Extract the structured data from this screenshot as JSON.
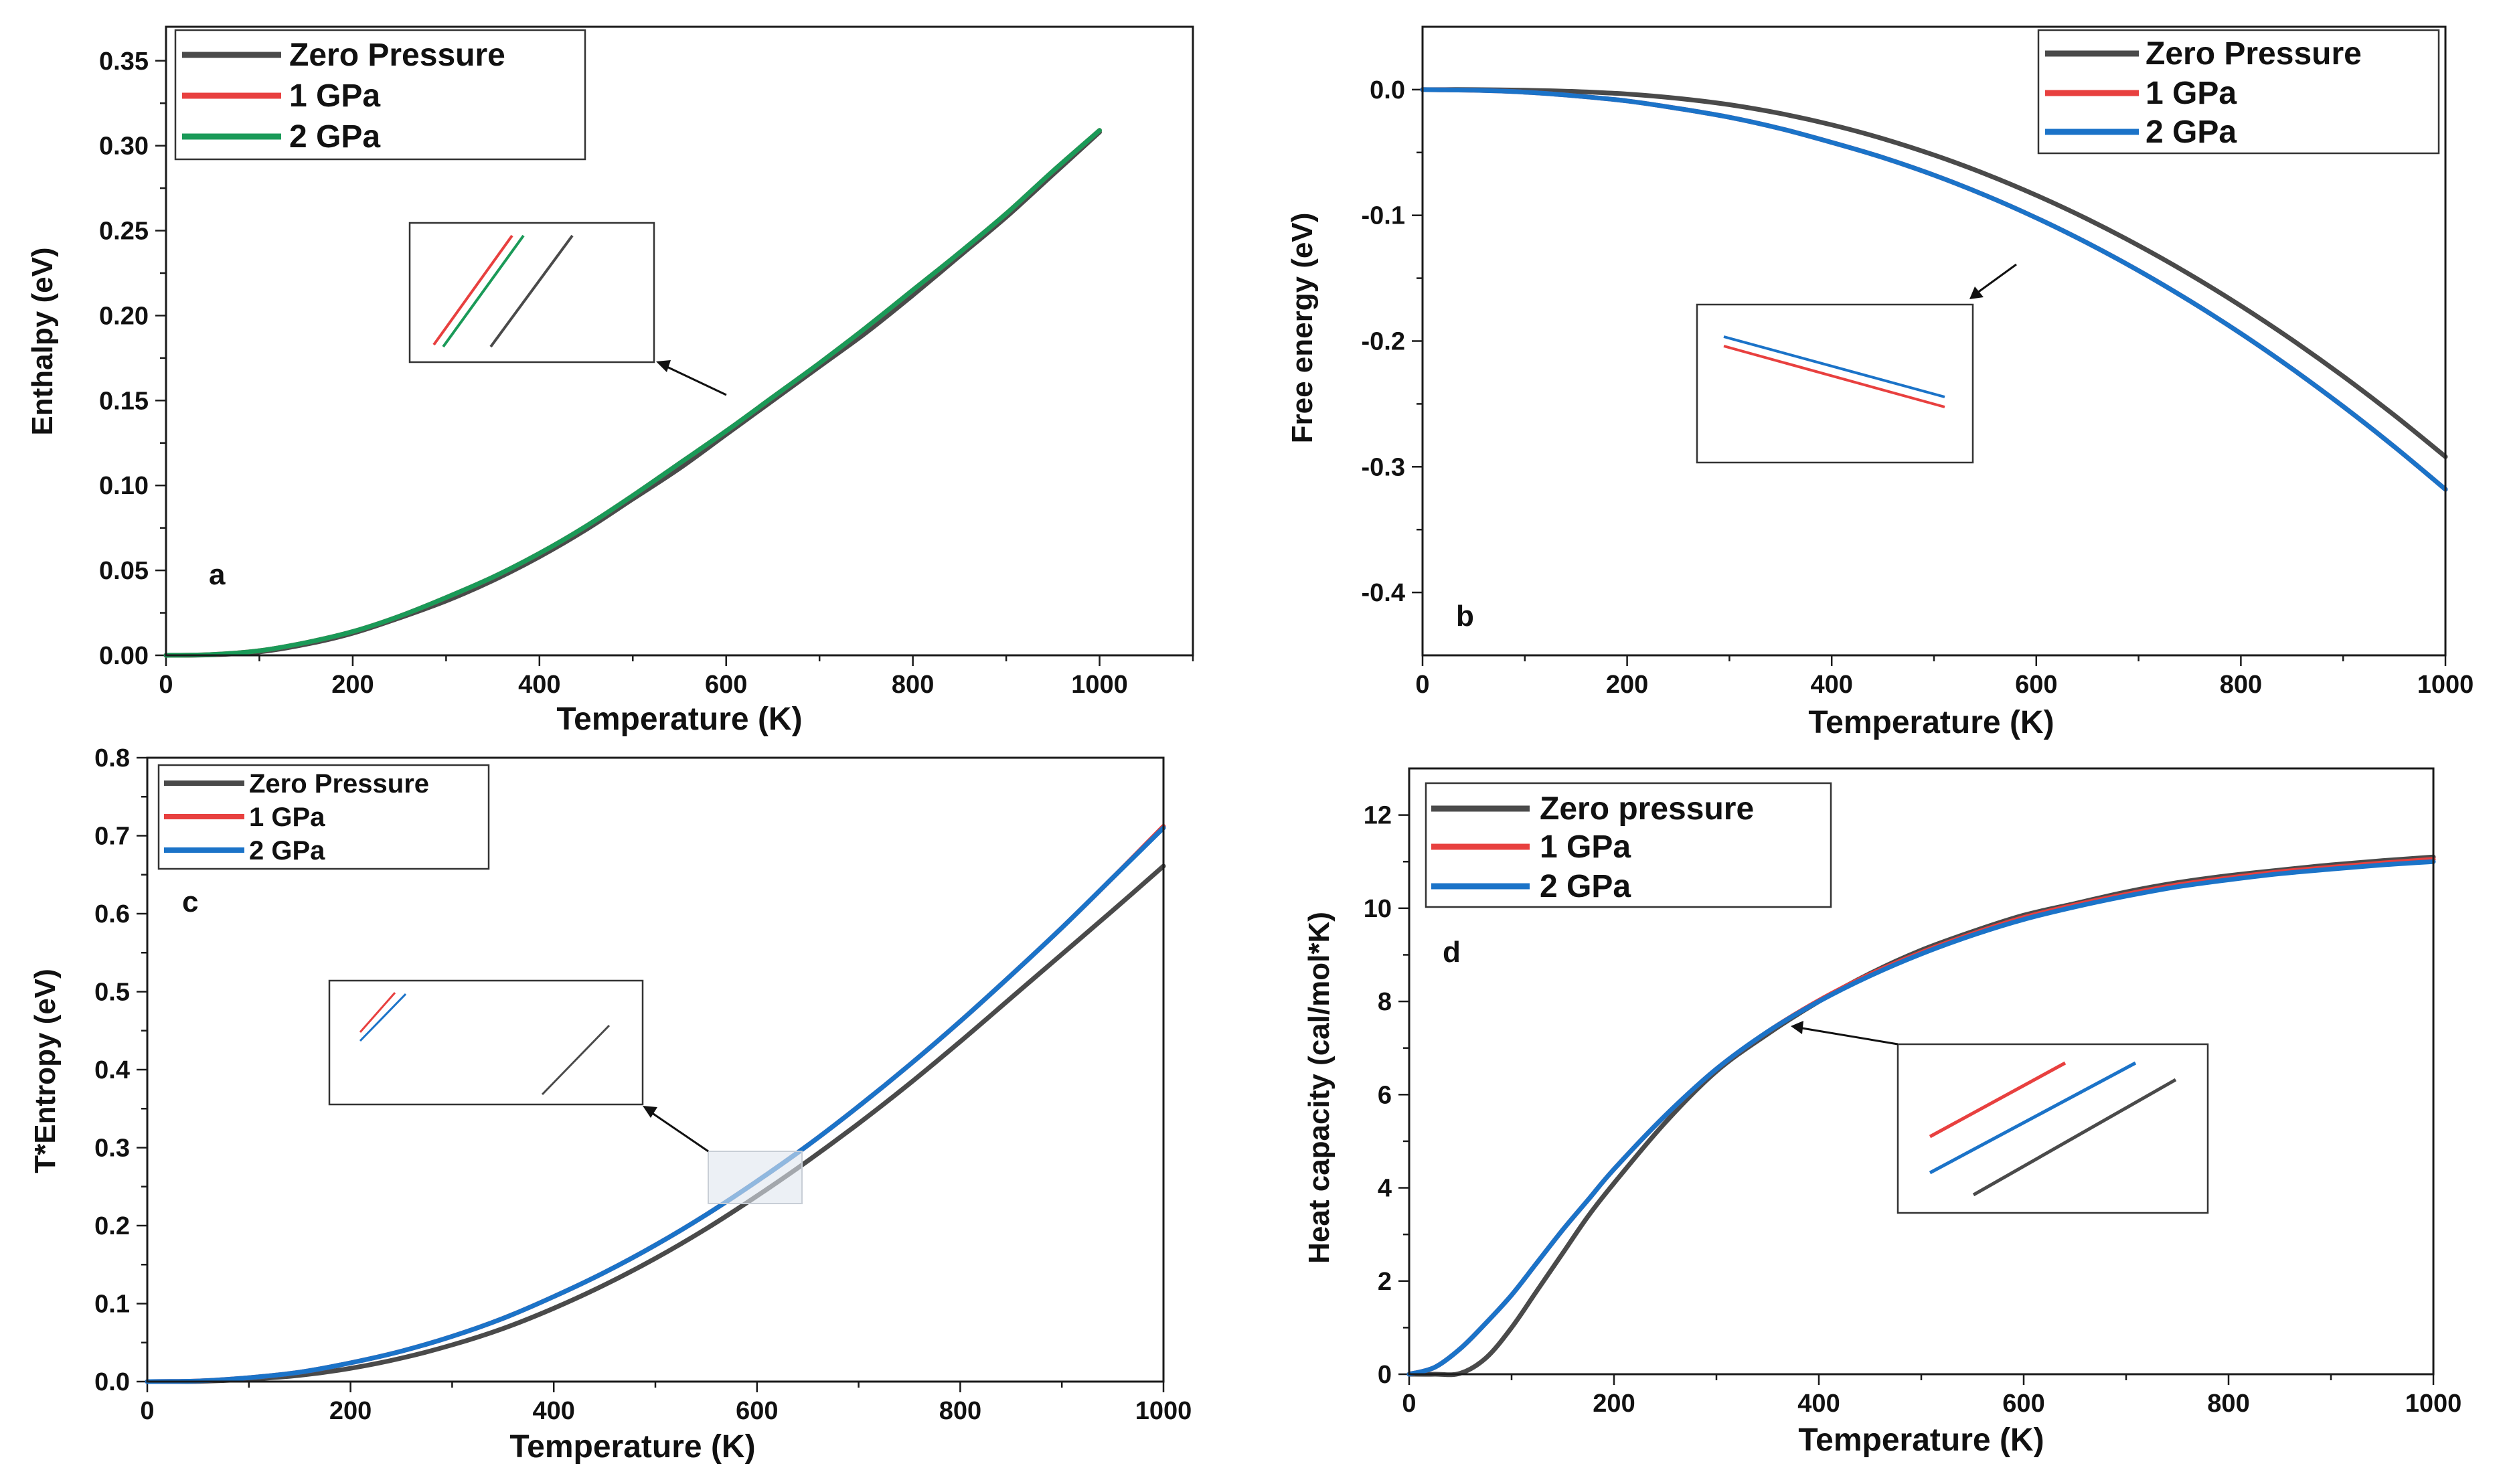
{
  "colors": {
    "zero": "#4a4a4a",
    "gpa1": "#e8403f",
    "gpa2_green": "#1a9a58",
    "gpa2_blue": "#1b73c8"
  },
  "chart_data": [
    {
      "id": "a",
      "type": "line",
      "panel_label": "a",
      "xlabel": "Temperature (K)",
      "ylabel": "Enthalpy (eV)",
      "xlim": [
        0,
        1100
      ],
      "ylim": [
        0,
        0.37
      ],
      "xticks": [
        0,
        200,
        400,
        600,
        800,
        1000
      ],
      "yticks": [
        0.0,
        0.05,
        0.1,
        0.15,
        0.2,
        0.25,
        0.3,
        0.35
      ],
      "ytick_labels": [
        "0.00",
        "0.05",
        "0.10",
        "0.15",
        "0.20",
        "0.25",
        "0.30",
        "0.35"
      ],
      "legend": [
        "Zero Pressure",
        "1 GPa",
        "2 GPa"
      ],
      "legend_position": "top-left",
      "x": [
        0,
        50,
        100,
        150,
        200,
        250,
        300,
        350,
        400,
        450,
        500,
        550,
        600,
        650,
        700,
        750,
        800,
        850,
        900,
        950,
        1000
      ],
      "series": [
        {
          "name": "Zero Pressure",
          "color_key": "zero",
          "values": [
            0,
            0.0003,
            0.002,
            0.0065,
            0.013,
            0.022,
            0.032,
            0.044,
            0.058,
            0.074,
            0.092,
            0.11,
            0.13,
            0.15,
            0.17,
            0.19,
            0.212,
            0.235,
            0.258,
            0.283,
            0.308
          ]
        },
        {
          "name": "1 GPa",
          "color_key": "gpa1",
          "values": [
            0,
            0.0005,
            0.0027,
            0.0075,
            0.014,
            0.023,
            0.034,
            0.046,
            0.06,
            0.076,
            0.094,
            0.113,
            0.132,
            0.152,
            0.172,
            0.193,
            0.215,
            0.237,
            0.26,
            0.285,
            0.309
          ]
        },
        {
          "name": "2 GPa",
          "color_key": "gpa2_green",
          "values": [
            0,
            0.0005,
            0.0027,
            0.0075,
            0.014,
            0.023,
            0.034,
            0.046,
            0.06,
            0.076,
            0.094,
            0.113,
            0.132,
            0.152,
            0.172,
            0.193,
            0.215,
            0.237,
            0.26,
            0.285,
            0.309
          ]
        }
      ]
    },
    {
      "id": "b",
      "type": "line",
      "panel_label": "b",
      "xlabel": "Temperature (K)",
      "ylabel": "Free energy (eV)",
      "xlim": [
        0,
        1000
      ],
      "ylim": [
        -0.45,
        0.05
      ],
      "xticks": [
        0,
        200,
        400,
        600,
        800,
        1000
      ],
      "yticks": [
        0.0,
        -0.1,
        -0.2,
        -0.3,
        -0.4
      ],
      "ytick_labels": [
        "0.0",
        "-0.1",
        "-0.2",
        "-0.3",
        "-0.4"
      ],
      "legend": [
        "Zero Pressure",
        "1 GPa",
        "2 GPa"
      ],
      "legend_position": "top-right",
      "x": [
        0,
        50,
        100,
        150,
        200,
        250,
        300,
        350,
        400,
        450,
        500,
        550,
        600,
        650,
        700,
        750,
        800,
        850,
        900,
        950,
        1000
      ],
      "series": [
        {
          "name": "Zero Pressure",
          "color_key": "zero",
          "values": [
            0,
            0,
            -0.0005,
            -0.0015,
            -0.0035,
            -0.007,
            -0.012,
            -0.019,
            -0.028,
            -0.039,
            -0.052,
            -0.067,
            -0.084,
            -0.103,
            -0.124,
            -0.147,
            -0.172,
            -0.199,
            -0.228,
            -0.259,
            -0.292
          ]
        },
        {
          "name": "1 GPa",
          "color_key": "gpa1",
          "values": [
            0,
            -0.0005,
            -0.002,
            -0.005,
            -0.009,
            -0.015,
            -0.022,
            -0.031,
            -0.042,
            -0.054,
            -0.068,
            -0.084,
            -0.102,
            -0.122,
            -0.144,
            -0.168,
            -0.194,
            -0.222,
            -0.252,
            -0.284,
            -0.318
          ]
        },
        {
          "name": "2 GPa",
          "color_key": "gpa2_blue",
          "values": [
            0,
            -0.0005,
            -0.002,
            -0.005,
            -0.009,
            -0.015,
            -0.022,
            -0.031,
            -0.042,
            -0.054,
            -0.068,
            -0.084,
            -0.102,
            -0.122,
            -0.144,
            -0.168,
            -0.194,
            -0.222,
            -0.252,
            -0.284,
            -0.318
          ]
        }
      ]
    },
    {
      "id": "c",
      "type": "line",
      "panel_label": "c",
      "xlabel": "Temperature (K)",
      "ylabel": "T*Entropy (eV)",
      "xlim": [
        0,
        1000
      ],
      "ylim": [
        0,
        0.8
      ],
      "xticks": [
        0,
        200,
        400,
        600,
        800,
        1000
      ],
      "yticks": [
        0.0,
        0.1,
        0.2,
        0.3,
        0.4,
        0.5,
        0.6,
        0.7,
        0.8
      ],
      "ytick_labels": [
        "0.0",
        "0.1",
        "0.2",
        "0.3",
        "0.4",
        "0.5",
        "0.6",
        "0.7",
        "0.8"
      ],
      "legend": [
        "Zero Pressure",
        "1 GPa",
        "2 GPa"
      ],
      "legend_position": "top-left",
      "x": [
        0,
        50,
        100,
        150,
        200,
        250,
        300,
        350,
        400,
        450,
        500,
        550,
        600,
        650,
        700,
        750,
        800,
        850,
        900,
        950,
        1000
      ],
      "series": [
        {
          "name": "Zero Pressure",
          "color_key": "zero",
          "values": [
            0,
            0.0003,
            0.003,
            0.008,
            0.017,
            0.03,
            0.047,
            0.068,
            0.094,
            0.124,
            0.158,
            0.196,
            0.238,
            0.283,
            0.331,
            0.382,
            0.436,
            0.492,
            0.548,
            0.604,
            0.661
          ]
        },
        {
          "name": "1 GPa",
          "color_key": "gpa1",
          "values": [
            0,
            0.0008,
            0.005,
            0.012,
            0.024,
            0.039,
            0.058,
            0.081,
            0.109,
            0.14,
            0.175,
            0.214,
            0.257,
            0.303,
            0.353,
            0.406,
            0.462,
            0.521,
            0.582,
            0.646,
            0.712
          ]
        },
        {
          "name": "2 GPa",
          "color_key": "gpa2_blue",
          "values": [
            0,
            0.0008,
            0.005,
            0.012,
            0.024,
            0.039,
            0.058,
            0.081,
            0.109,
            0.14,
            0.175,
            0.214,
            0.257,
            0.303,
            0.353,
            0.406,
            0.462,
            0.521,
            0.582,
            0.646,
            0.71
          ]
        }
      ]
    },
    {
      "id": "d",
      "type": "line",
      "panel_label": "d",
      "xlabel": "Temperature (K)",
      "ylabel": "Heat capacity (cal/mol*K)",
      "xlim": [
        0,
        1000
      ],
      "ylim": [
        0,
        13
      ],
      "xticks": [
        0,
        200,
        400,
        600,
        800,
        1000
      ],
      "yticks": [
        0,
        2,
        4,
        6,
        8,
        10,
        12
      ],
      "ytick_labels": [
        "0",
        "2",
        "4",
        "6",
        "8",
        "10",
        "12"
      ],
      "legend": [
        "Zero pressure",
        "1 GPa",
        "2 GPa"
      ],
      "legend_position": "top-left",
      "x": [
        0,
        25,
        50,
        75,
        100,
        125,
        150,
        175,
        200,
        250,
        300,
        350,
        400,
        450,
        500,
        550,
        600,
        650,
        700,
        750,
        800,
        850,
        900,
        950,
        1000
      ],
      "series": [
        {
          "name": "Zero pressure",
          "color_key": "zero",
          "values": [
            0,
            0,
            0.02,
            0.35,
            1.0,
            1.8,
            2.6,
            3.4,
            4.1,
            5.4,
            6.5,
            7.3,
            8.0,
            8.6,
            9.1,
            9.5,
            9.85,
            10.1,
            10.35,
            10.55,
            10.7,
            10.82,
            10.93,
            11.02,
            11.1
          ]
        },
        {
          "name": "1 GPa",
          "color_key": "gpa1",
          "values": [
            0,
            0.15,
            0.55,
            1.1,
            1.7,
            2.4,
            3.1,
            3.75,
            4.4,
            5.55,
            6.55,
            7.35,
            8.02,
            8.58,
            9.05,
            9.45,
            9.8,
            10.07,
            10.3,
            10.5,
            10.65,
            10.78,
            10.88,
            10.97,
            11.05
          ]
        },
        {
          "name": "2 GPa",
          "color_key": "gpa2_blue",
          "values": [
            0,
            0.15,
            0.55,
            1.1,
            1.7,
            2.4,
            3.1,
            3.75,
            4.4,
            5.55,
            6.55,
            7.35,
            8.0,
            8.55,
            9.02,
            9.42,
            9.76,
            10.03,
            10.26,
            10.46,
            10.61,
            10.74,
            10.84,
            10.93,
            11.0
          ]
        }
      ]
    }
  ]
}
